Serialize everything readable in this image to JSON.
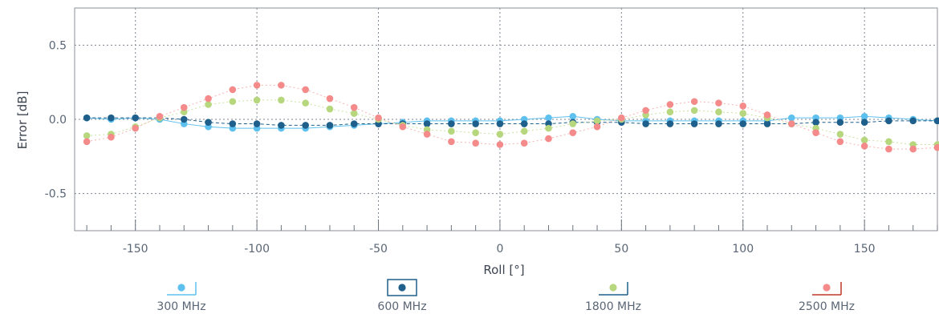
{
  "chart_data": {
    "type": "scatter",
    "xlabel": "Roll [°]",
    "ylabel": "Error [dB]",
    "xlim": [
      -175,
      180
    ],
    "ylim": [
      -0.75,
      0.75
    ],
    "x_ticks": [
      -150,
      -100,
      -50,
      0,
      50,
      100,
      150
    ],
    "y_ticks": [
      0.5,
      0.0,
      -0.5
    ],
    "x_tick_labels": [
      "-150",
      "-100",
      "-50",
      "0",
      "50",
      "100",
      "150"
    ],
    "y_tick_labels": [
      "0.5",
      "0.0",
      "-0.5"
    ],
    "grid": true,
    "legend_position": "bottom",
    "x": [
      -170,
      -160,
      -150,
      -140,
      -130,
      -120,
      -110,
      -100,
      -90,
      -80,
      -70,
      -60,
      -50,
      -40,
      -30,
      -20,
      -10,
      0,
      10,
      20,
      30,
      40,
      50,
      60,
      70,
      80,
      90,
      100,
      110,
      120,
      130,
      140,
      150,
      160,
      170,
      180
    ],
    "series": [
      {
        "name": "300 MHz",
        "color": "#5ec0ee",
        "values": [
          0.01,
          0.0,
          0.01,
          0.0,
          -0.03,
          -0.05,
          -0.06,
          -0.06,
          -0.06,
          -0.06,
          -0.05,
          -0.04,
          -0.03,
          -0.02,
          -0.01,
          -0.01,
          -0.01,
          -0.01,
          0.0,
          0.01,
          0.02,
          0.0,
          -0.01,
          -0.01,
          -0.01,
          -0.01,
          -0.01,
          -0.01,
          -0.01,
          0.01,
          0.01,
          0.01,
          0.02,
          0.01,
          0.0,
          -0.01
        ]
      },
      {
        "name": "600 MHz",
        "color": "#1f5f8b",
        "values": [
          0.01,
          0.01,
          0.01,
          0.01,
          0.0,
          -0.02,
          -0.03,
          -0.03,
          -0.04,
          -0.04,
          -0.04,
          -0.03,
          -0.03,
          -0.03,
          -0.03,
          -0.03,
          -0.03,
          -0.03,
          -0.03,
          -0.03,
          -0.02,
          -0.02,
          -0.02,
          -0.03,
          -0.03,
          -0.03,
          -0.03,
          -0.03,
          -0.03,
          -0.03,
          -0.02,
          -0.02,
          -0.02,
          -0.01,
          -0.01,
          -0.01
        ]
      },
      {
        "name": "1800 MHz",
        "color": "#b7d77e",
        "values": [
          -0.11,
          -0.1,
          -0.05,
          0.01,
          0.05,
          0.1,
          0.12,
          0.13,
          0.13,
          0.11,
          0.07,
          0.04,
          0.0,
          -0.04,
          -0.07,
          -0.08,
          -0.09,
          -0.1,
          -0.08,
          -0.06,
          -0.03,
          -0.01,
          0.0,
          0.03,
          0.05,
          0.06,
          0.05,
          0.04,
          0.01,
          -0.03,
          -0.06,
          -0.1,
          -0.14,
          -0.15,
          -0.17,
          -0.17
        ]
      },
      {
        "name": "2500 MHz",
        "color": "#f48a8a",
        "values": [
          -0.15,
          -0.12,
          -0.06,
          0.02,
          0.08,
          0.14,
          0.2,
          0.23,
          0.23,
          0.2,
          0.14,
          0.08,
          0.01,
          -0.05,
          -0.1,
          -0.15,
          -0.16,
          -0.17,
          -0.16,
          -0.13,
          -0.09,
          -0.05,
          0.01,
          0.06,
          0.1,
          0.12,
          0.11,
          0.09,
          0.03,
          -0.03,
          -0.09,
          -0.15,
          -0.18,
          -0.2,
          -0.2,
          -0.19
        ]
      }
    ]
  }
}
